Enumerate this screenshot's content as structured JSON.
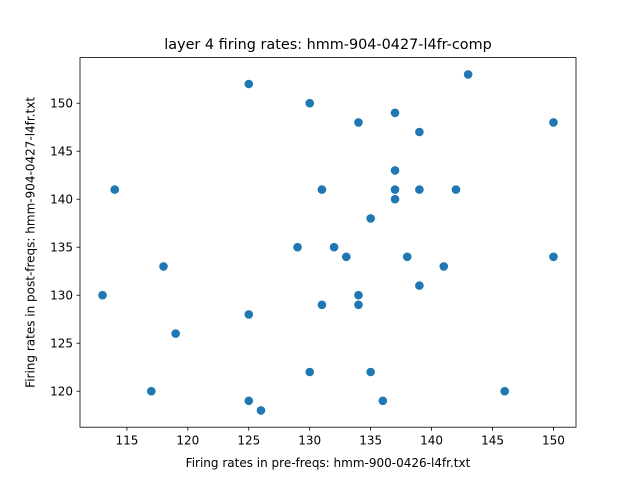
{
  "chart_data": {
    "type": "scatter",
    "title": "layer 4 firing rates: hmm-904-0427-l4fr-comp",
    "xlabel": "Firing rates in pre-freqs: hmm-900-0426-l4fr.txt",
    "ylabel": "Firing rates in post-freqs: hmm-904-0427-l4fr.txt",
    "xlim": [
      111.15,
      151.85
    ],
    "ylim": [
      116.25,
      154.75
    ],
    "xticks": [
      115,
      120,
      125,
      130,
      135,
      140,
      145,
      150
    ],
    "yticks": [
      120,
      125,
      130,
      135,
      140,
      145,
      150
    ],
    "grid": false,
    "marker_color": "#1f77b4",
    "points": [
      {
        "x": 113,
        "y": 130
      },
      {
        "x": 114,
        "y": 141
      },
      {
        "x": 117,
        "y": 120
      },
      {
        "x": 118,
        "y": 133
      },
      {
        "x": 119,
        "y": 126
      },
      {
        "x": 125,
        "y": 152
      },
      {
        "x": 125,
        "y": 128
      },
      {
        "x": 125,
        "y": 119
      },
      {
        "x": 126,
        "y": 118
      },
      {
        "x": 129,
        "y": 135
      },
      {
        "x": 130,
        "y": 150
      },
      {
        "x": 130,
        "y": 122
      },
      {
        "x": 131,
        "y": 141
      },
      {
        "x": 131,
        "y": 129
      },
      {
        "x": 132,
        "y": 135
      },
      {
        "x": 133,
        "y": 134
      },
      {
        "x": 134,
        "y": 148
      },
      {
        "x": 134,
        "y": 130
      },
      {
        "x": 134,
        "y": 129
      },
      {
        "x": 135,
        "y": 138
      },
      {
        "x": 135,
        "y": 122
      },
      {
        "x": 136,
        "y": 119
      },
      {
        "x": 137,
        "y": 149
      },
      {
        "x": 137,
        "y": 143
      },
      {
        "x": 137,
        "y": 141
      },
      {
        "x": 137,
        "y": 140
      },
      {
        "x": 138,
        "y": 134
      },
      {
        "x": 139,
        "y": 147
      },
      {
        "x": 139,
        "y": 141
      },
      {
        "x": 139,
        "y": 131
      },
      {
        "x": 141,
        "y": 133
      },
      {
        "x": 142,
        "y": 141
      },
      {
        "x": 143,
        "y": 153
      },
      {
        "x": 146,
        "y": 120
      },
      {
        "x": 150,
        "y": 148
      },
      {
        "x": 150,
        "y": 134
      }
    ]
  }
}
